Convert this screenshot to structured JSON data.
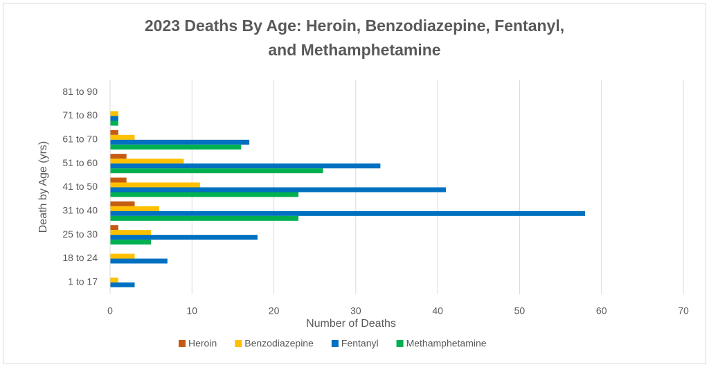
{
  "chart_data": {
    "type": "hbar",
    "title": "2023 Deaths By Age: Heroin, Benzodiazepine, Fentanyl, and Methamphetamine",
    "x_label": "Number of Deaths",
    "y_label": "Death by Age (yrs)",
    "categories": [
      "1 to 17",
      "18 to 24",
      "25 to 30",
      "31 to 40",
      "41 to 50",
      "51 to 60",
      "61 to 70",
      "71 to 80",
      "81 to 90"
    ],
    "series": [
      {
        "name": "Heroin",
        "color": "#c55a11",
        "values": [
          0,
          0,
          1,
          3,
          2,
          2,
          1,
          0,
          0
        ]
      },
      {
        "name": "Benzodiazepine",
        "color": "#ffc000",
        "values": [
          1,
          3,
          5,
          6,
          11,
          9,
          3,
          1,
          0
        ]
      },
      {
        "name": "Fentanyl",
        "color": "#0070c0",
        "values": [
          3,
          7,
          18,
          58,
          41,
          33,
          17,
          1,
          0
        ]
      },
      {
        "name": "Methamphetamine",
        "color": "#00b050",
        "values": [
          0,
          0,
          5,
          23,
          23,
          26,
          16,
          1,
          0
        ]
      }
    ],
    "xlim": [
      0,
      70
    ],
    "xticks": [
      0,
      10,
      20,
      30,
      40,
      50,
      60,
      70
    ],
    "grid": true
  }
}
